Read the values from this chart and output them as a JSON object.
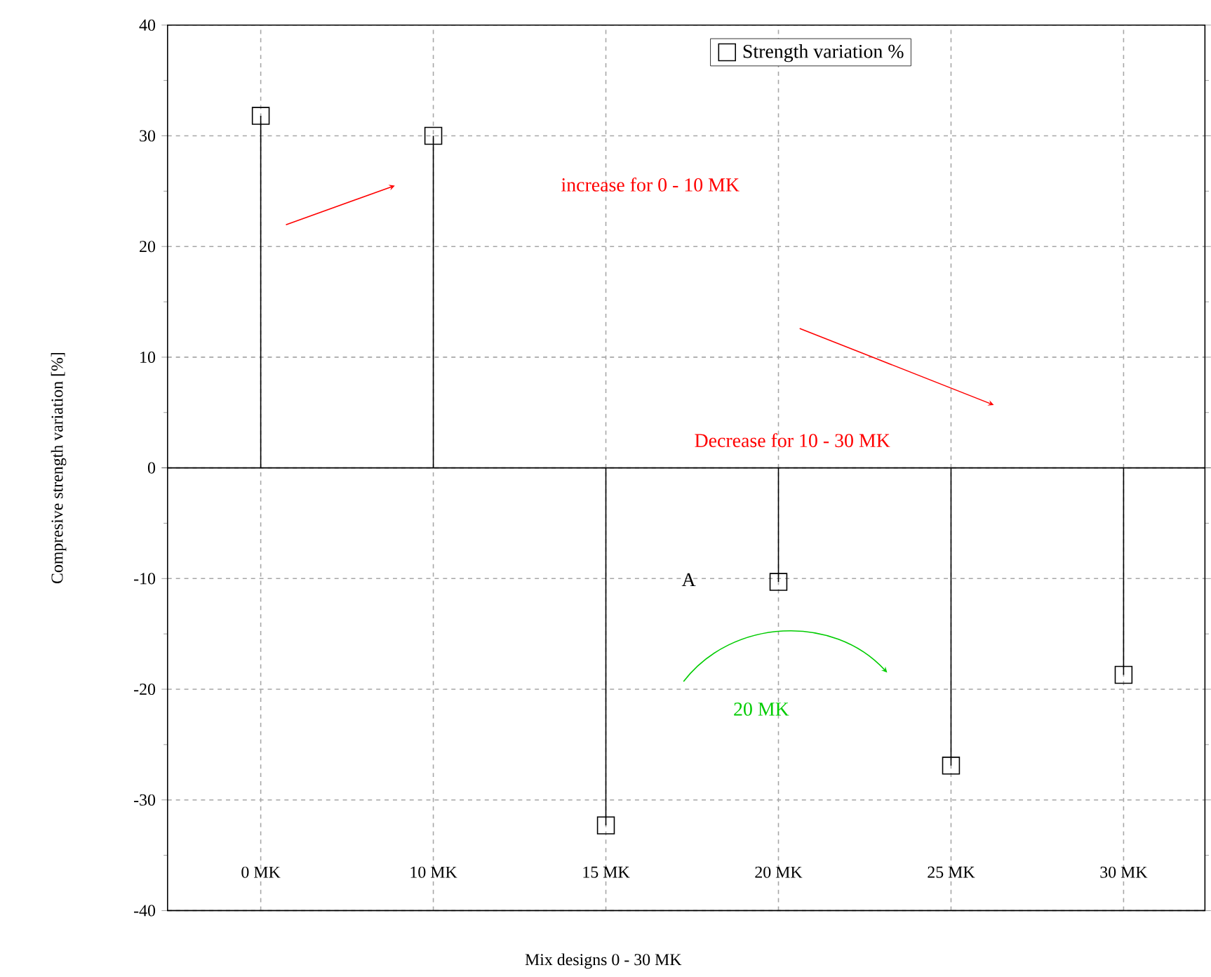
{
  "chart_data": {
    "type": "lollipop",
    "xlabel": "Mix designs 0 - 30 MK",
    "ylabel": "Compresive strength variation [%]",
    "categories": [
      "0 MK",
      "10 MK",
      "15 MK",
      "20 MK",
      "25 MK",
      "30 MK"
    ],
    "series": [
      {
        "name": "Strength variation %",
        "color": "#000000",
        "values": [
          31.8,
          30.0,
          -32.3,
          -10.3,
          -26.9,
          -18.7
        ]
      }
    ],
    "ylim": [
      -40,
      40
    ],
    "yticks": [
      -40,
      -30,
      -20,
      -10,
      0,
      10,
      20,
      30,
      40
    ],
    "grid": true,
    "legend": "top",
    "marker": "square",
    "annotations": [
      "increase for 0 - 10 MK",
      "Decrease for 10 - 30 MK",
      "A",
      "20 MK"
    ]
  }
}
